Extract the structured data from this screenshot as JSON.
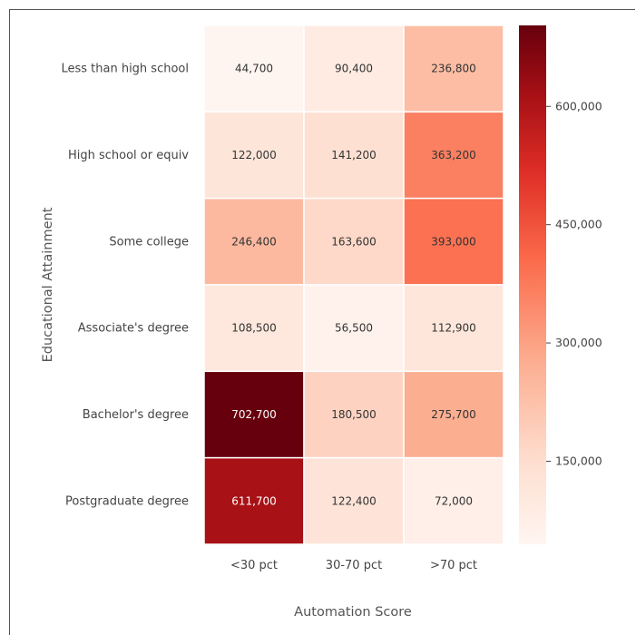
{
  "chart_data": {
    "type": "heatmap",
    "title": "",
    "xlabel": "Automation Score",
    "ylabel": "Educational Attainment",
    "x_categories": [
      "<30 pct",
      "30-70 pct",
      ">70 pct"
    ],
    "y_categories": [
      "Less than high school",
      "High school or equiv",
      "Some college",
      "Associate's degree",
      "Bachelor's degree",
      "Postgraduate degree"
    ],
    "values": [
      [
        44700,
        90400,
        236800
      ],
      [
        122000,
        141200,
        363200
      ],
      [
        246400,
        163600,
        393000
      ],
      [
        108500,
        56500,
        112900
      ],
      [
        702700,
        180500,
        275700
      ],
      [
        611700,
        122400,
        72000
      ]
    ],
    "value_labels": [
      [
        "44,700",
        "90,400",
        "236,800"
      ],
      [
        "122,000",
        "141,200",
        "363,200"
      ],
      [
        "246,400",
        "163,600",
        "393,000"
      ],
      [
        "108,500",
        "56,500",
        "112,900"
      ],
      [
        "702,700",
        "180,500",
        "275,700"
      ],
      [
        "611,700",
        "122,400",
        "72,000"
      ]
    ],
    "colorbar": {
      "range": [
        44700,
        702700
      ],
      "ticks": [
        150000,
        300000,
        450000,
        600000
      ],
      "tick_labels": [
        "150,000",
        "300,000",
        "450,000",
        "600,000"
      ],
      "colormap": "Reds"
    }
  }
}
